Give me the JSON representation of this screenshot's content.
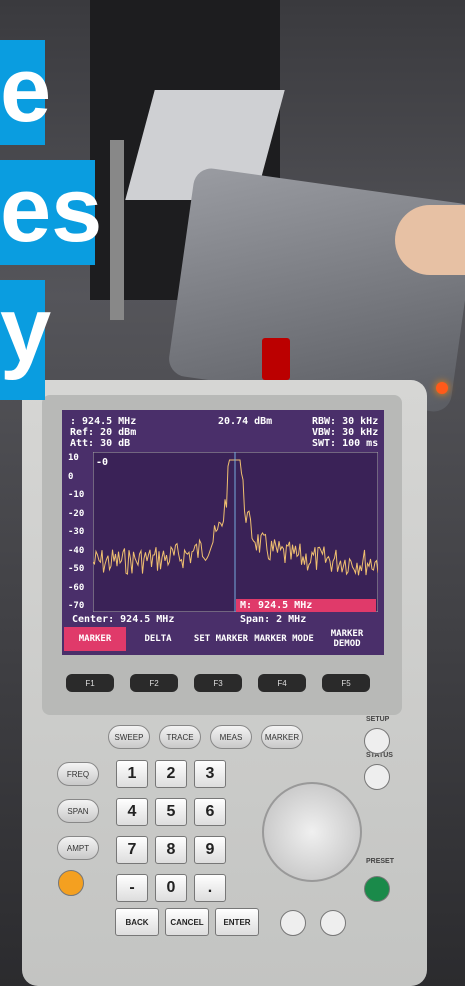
{
  "overlay": [
    "e",
    "es",
    "y"
  ],
  "screen": {
    "header": {
      "freq": ": 924.5 MHz",
      "level": "20.74 dBm",
      "rbw": "RBW: 30 kHz",
      "ref": "Ref: 20 dBm",
      "vbw": "VBW: 30 kHz",
      "att": "Att: 30 dB",
      "swt": "SWT: 100 ms"
    },
    "y_labels": [
      "10",
      "0",
      "-10",
      "-20",
      "-30",
      "-40",
      "-50",
      "-60",
      "-70"
    ],
    "trace_label": "-0",
    "marker": "M: 924.5 MHz",
    "center": "Center: 924.5 MHz",
    "span": "Span: 2 MHz",
    "softkeys": [
      "MARKER",
      "DELTA",
      "SET MARKER",
      "MARKER MODE",
      "MARKER DEMOD"
    ]
  },
  "fkeys": [
    "F1",
    "F2",
    "F3",
    "F4",
    "F5"
  ],
  "keys": {
    "top_row": [
      "SWEEP",
      "TRACE",
      "MEAS",
      "MARKER"
    ],
    "left_col": [
      "FREQ",
      "SPAN",
      "AMPT"
    ],
    "digits": [
      "1",
      "2",
      "3",
      "4",
      "5",
      "6",
      "7",
      "8",
      "9",
      "-",
      "0",
      "."
    ],
    "bottom": [
      "BACK",
      "CANCEL",
      "ENTER"
    ],
    "side": [
      "SETUP",
      "STATUS",
      "PRESET"
    ]
  }
}
